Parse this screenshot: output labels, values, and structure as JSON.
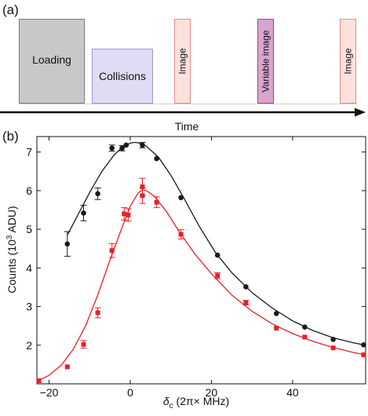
{
  "panel_a": {
    "label": "(a)",
    "blocks": [
      {
        "label": "Loading",
        "fill": "#c8c8c8",
        "stroke": "#7a7a7a"
      },
      {
        "label": "Collisions",
        "fill": "#e0dcf4",
        "stroke": "#9e96d2"
      },
      {
        "label": "Image",
        "fill": "#fde1dc",
        "stroke": "#e58a86"
      },
      {
        "label": "Variable image",
        "fill": "#d9a4cd",
        "stroke": "#8a4f87"
      },
      {
        "label": "Image",
        "fill": "#fde1dc",
        "stroke": "#e58a86"
      }
    ],
    "time_label": "Time"
  },
  "panel_b": {
    "label": "(b)"
  },
  "chart_data": {
    "type": "scatter",
    "xlabel_main": "δ",
    "xlabel_sub": "c",
    "xlabel_rest": " (2π× MHz)",
    "ylabel_main": "Counts (10",
    "ylabel_sup": "3",
    "ylabel_rest": " ADU)",
    "xlim": [
      -23,
      58
    ],
    "ylim": [
      1,
      7.4
    ],
    "xticks": [
      -20,
      0,
      20,
      40
    ],
    "yticks": [
      2,
      3,
      4,
      5,
      6,
      7
    ],
    "series": [
      {
        "color": "#1a1a1a",
        "marker": "circle",
        "points": [
          {
            "x": -15.5,
            "y": 4.62,
            "err": 0.32
          },
          {
            "x": -11.5,
            "y": 5.42,
            "err": 0.2
          },
          {
            "x": -8,
            "y": 5.92,
            "err": 0.15
          },
          {
            "x": -4.5,
            "y": 7.1,
            "err": 0.08
          },
          {
            "x": -2,
            "y": 7.1,
            "err": 0.07
          },
          {
            "x": -1,
            "y": 7.18,
            "err": 0.05
          },
          {
            "x": 3,
            "y": 7.18,
            "err": 0.07
          },
          {
            "x": 6.5,
            "y": 6.83,
            "err": 0.05
          },
          {
            "x": 12.5,
            "y": 5.82,
            "err": 0.05
          },
          {
            "x": 21.5,
            "y": 4.33,
            "err": 0.04
          },
          {
            "x": 28.5,
            "y": 3.51,
            "err": 0.04
          },
          {
            "x": 36,
            "y": 2.82,
            "err": 0.04
          },
          {
            "x": 43,
            "y": 2.47,
            "err": 0.04
          },
          {
            "x": 50,
            "y": 2.15,
            "err": 0.04
          },
          {
            "x": 57.5,
            "y": 2.01,
            "err": 0.03
          }
        ],
        "fit": [
          {
            "x": -15.5,
            "y": 4.85
          },
          {
            "x": -13,
            "y": 5.35
          },
          {
            "x": -10,
            "y": 5.95
          },
          {
            "x": -7,
            "y": 6.5
          },
          {
            "x": -4,
            "y": 6.92
          },
          {
            "x": -2,
            "y": 7.12
          },
          {
            "x": 0,
            "y": 7.23
          },
          {
            "x": 1,
            "y": 7.25
          },
          {
            "x": 2,
            "y": 7.24
          },
          {
            "x": 4,
            "y": 7.15
          },
          {
            "x": 7,
            "y": 6.86
          },
          {
            "x": 10,
            "y": 6.4
          },
          {
            "x": 13,
            "y": 5.85
          },
          {
            "x": 17,
            "y": 5.08
          },
          {
            "x": 21,
            "y": 4.4
          },
          {
            "x": 25,
            "y": 3.88
          },
          {
            "x": 30,
            "y": 3.36
          },
          {
            "x": 35,
            "y": 2.96
          },
          {
            "x": 40,
            "y": 2.63
          },
          {
            "x": 45,
            "y": 2.38
          },
          {
            "x": 50,
            "y": 2.19
          },
          {
            "x": 55,
            "y": 2.06
          },
          {
            "x": 58,
            "y": 2.0
          }
        ]
      },
      {
        "color": "#e8202a",
        "marker": "square",
        "points": [
          {
            "x": -22.5,
            "y": 1.08,
            "err": 0.03
          },
          {
            "x": -15.5,
            "y": 1.44,
            "err": 0.05
          },
          {
            "x": -11.5,
            "y": 2.02,
            "err": 0.1
          },
          {
            "x": -8,
            "y": 2.84,
            "err": 0.13
          },
          {
            "x": -4.5,
            "y": 4.45,
            "err": 0.18
          },
          {
            "x": -1.5,
            "y": 5.4,
            "err": 0.16
          },
          {
            "x": -0.5,
            "y": 5.37,
            "err": 0.16
          },
          {
            "x": 3,
            "y": 6.1,
            "err": 0.22
          },
          {
            "x": 3,
            "y": 5.87,
            "err": 0.2
          },
          {
            "x": 6.5,
            "y": 5.7,
            "err": 0.14
          },
          {
            "x": 12.5,
            "y": 4.87,
            "err": 0.12
          },
          {
            "x": 21.5,
            "y": 3.8,
            "err": 0.08
          },
          {
            "x": 28.5,
            "y": 3.1,
            "err": 0.06
          },
          {
            "x": 36,
            "y": 2.44,
            "err": 0.05
          },
          {
            "x": 43,
            "y": 2.21,
            "err": 0.04
          },
          {
            "x": 50,
            "y": 1.93,
            "err": 0.04
          },
          {
            "x": 57.5,
            "y": 1.75,
            "err": 0.04
          }
        ],
        "fit": [
          {
            "x": -23,
            "y": 1.06
          },
          {
            "x": -20,
            "y": 1.22
          },
          {
            "x": -17,
            "y": 1.48
          },
          {
            "x": -14,
            "y": 1.9
          },
          {
            "x": -11,
            "y": 2.5
          },
          {
            "x": -8,
            "y": 3.3
          },
          {
            "x": -5,
            "y": 4.2
          },
          {
            "x": -2,
            "y": 5.05
          },
          {
            "x": 0,
            "y": 5.6
          },
          {
            "x": 2,
            "y": 5.95
          },
          {
            "x": 3,
            "y": 6.02
          },
          {
            "x": 4,
            "y": 6.0
          },
          {
            "x": 6,
            "y": 5.85
          },
          {
            "x": 9,
            "y": 5.45
          },
          {
            "x": 12,
            "y": 4.95
          },
          {
            "x": 16,
            "y": 4.35
          },
          {
            "x": 20,
            "y": 3.85
          },
          {
            "x": 25,
            "y": 3.3
          },
          {
            "x": 30,
            "y": 2.88
          },
          {
            "x": 35,
            "y": 2.55
          },
          {
            "x": 40,
            "y": 2.3
          },
          {
            "x": 45,
            "y": 2.1
          },
          {
            "x": 50,
            "y": 1.94
          },
          {
            "x": 55,
            "y": 1.81
          },
          {
            "x": 58,
            "y": 1.75
          }
        ]
      }
    ]
  }
}
